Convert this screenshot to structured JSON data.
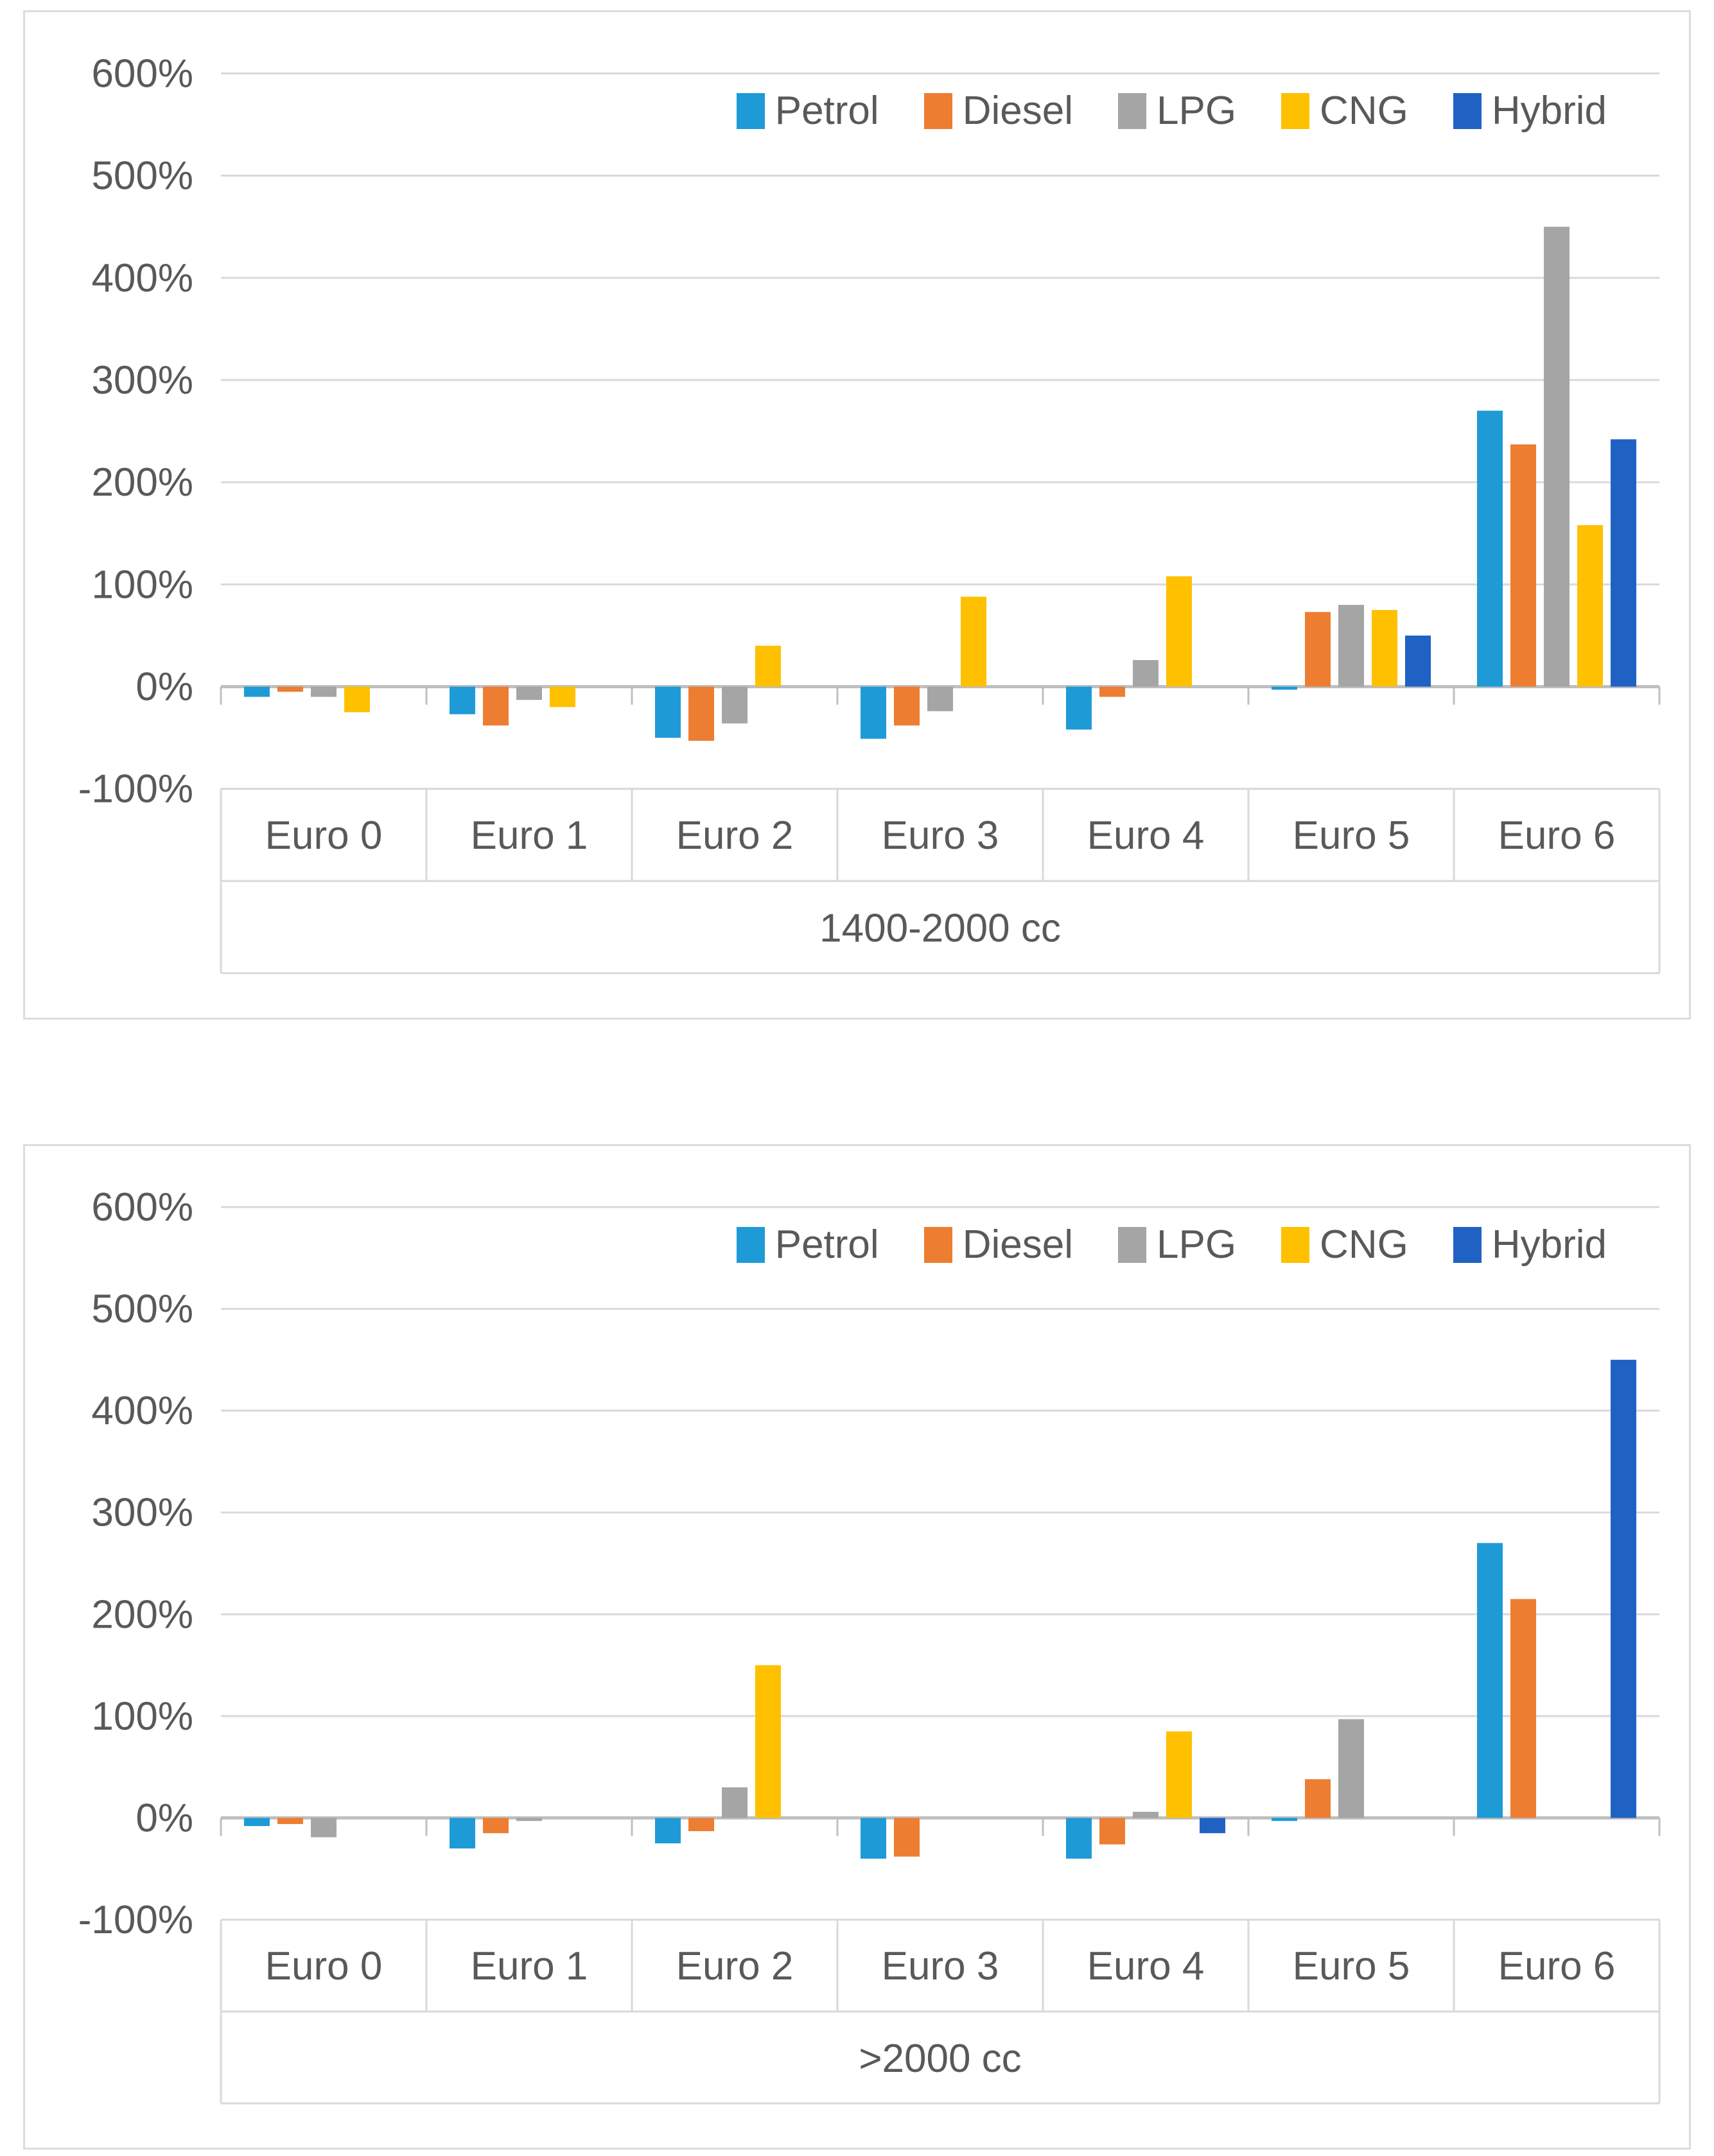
{
  "page": {
    "background": "#ffffff"
  },
  "colors": {
    "series": [
      "#1E9BD7",
      "#ED7D31",
      "#A5A5A5",
      "#FFC000",
      "#2062C4"
    ],
    "axis_text": "#595959",
    "gridline": "#D9D9D9",
    "axis_line": "#BFBFBF",
    "band_border": "#D9D9D9",
    "panel_border": "#DCDCDC"
  },
  "chart_data": [
    {
      "type": "bar",
      "title": "1400-2000 cc",
      "xlabel": "1400-2000 cc",
      "ylabel": "",
      "ylim": [
        -100,
        600
      ],
      "grid": true,
      "legend_position": "top-right",
      "y_tick_labels": [
        "600%",
        "500%",
        "400%",
        "300%",
        "200%",
        "100%",
        "0%",
        "-100%"
      ],
      "categories": [
        "Euro 0",
        "Euro 1",
        "Euro 2",
        "Euro 3",
        "Euro 4",
        "Euro 5",
        "Euro 6"
      ],
      "series": [
        {
          "name": "Petrol",
          "values": [
            -10,
            -27,
            -50,
            -51,
            -42,
            -3,
            270
          ]
        },
        {
          "name": "Diesel",
          "values": [
            -5,
            -38,
            -53,
            -38,
            -10,
            73,
            237
          ]
        },
        {
          "name": "LPG",
          "values": [
            -10,
            -13,
            -36,
            -24,
            26,
            80,
            450
          ]
        },
        {
          "name": "CNG",
          "values": [
            -25,
            -20,
            40,
            88,
            108,
            75,
            158
          ]
        },
        {
          "name": "Hybrid",
          "values": [
            null,
            null,
            null,
            null,
            null,
            50,
            242
          ]
        }
      ]
    },
    {
      "type": "bar",
      "title": ">2000 cc",
      "xlabel": ">2000 cc",
      "ylabel": "",
      "ylim": [
        -100,
        600
      ],
      "grid": true,
      "legend_position": "top-right",
      "y_tick_labels": [
        "600%",
        "500%",
        "400%",
        "300%",
        "200%",
        "100%",
        "0%",
        "-100%"
      ],
      "categories": [
        "Euro 0",
        "Euro 1",
        "Euro 2",
        "Euro 3",
        "Euro 4",
        "Euro 5",
        "Euro 6"
      ],
      "series": [
        {
          "name": "Petrol",
          "values": [
            -8,
            -30,
            -25,
            -40,
            -40,
            -3,
            270
          ]
        },
        {
          "name": "Diesel",
          "values": [
            -6,
            -15,
            -13,
            -38,
            -26,
            38,
            215
          ]
        },
        {
          "name": "LPG",
          "values": [
            -19,
            -3,
            30,
            null,
            6,
            97,
            null
          ]
        },
        {
          "name": "CNG",
          "values": [
            null,
            null,
            150,
            null,
            85,
            null,
            null
          ]
        },
        {
          "name": "Hybrid",
          "values": [
            null,
            null,
            null,
            null,
            -15,
            null,
            450
          ]
        }
      ]
    }
  ]
}
